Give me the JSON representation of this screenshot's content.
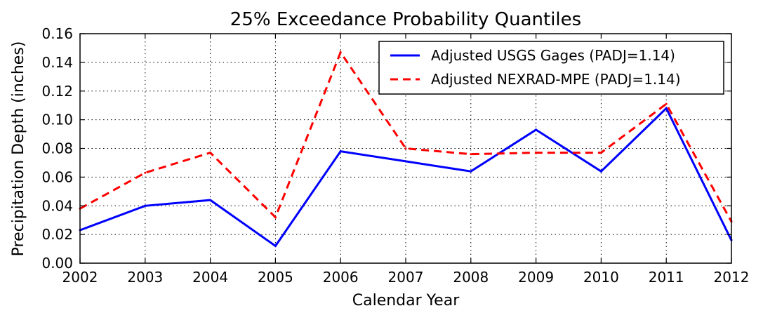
{
  "chart_data": {
    "type": "line",
    "title": "25% Exceedance Probability Quantiles",
    "xlabel": "Calendar Year",
    "ylabel": "Precipitation Depth (inches)",
    "xlim": [
      2002,
      2012
    ],
    "ylim": [
      0,
      0.16
    ],
    "x": [
      2002,
      2003,
      2004,
      2005,
      2006,
      2007,
      2008,
      2009,
      2010,
      2011,
      2012
    ],
    "x_ticks": [
      "2002",
      "2003",
      "2004",
      "2005",
      "2006",
      "2007",
      "2008",
      "2009",
      "2010",
      "2011",
      "2012"
    ],
    "y_ticks": [
      "0.00",
      "0.02",
      "0.04",
      "0.06",
      "0.08",
      "0.10",
      "0.12",
      "0.14",
      "0.16"
    ],
    "y_tick_values": [
      0,
      0.02,
      0.04,
      0.06,
      0.08,
      0.1,
      0.12,
      0.14,
      0.16
    ],
    "grid": true,
    "legend_position": "top-right",
    "series": [
      {
        "name": "Adjusted USGS Gages (PADJ=1.14)",
        "color": "#0000ff",
        "style": "solid",
        "values": [
          0.023,
          0.04,
          0.044,
          0.012,
          0.078,
          0.071,
          0.064,
          0.093,
          0.064,
          0.108,
          0.016
        ]
      },
      {
        "name": "Adjusted NEXRAD-MPE (PADJ=1.14)",
        "color": "#ff0000",
        "style": "dashed",
        "values": [
          0.038,
          0.063,
          0.077,
          0.032,
          0.147,
          0.08,
          0.076,
          0.077,
          0.077,
          0.111,
          0.029
        ]
      }
    ]
  }
}
